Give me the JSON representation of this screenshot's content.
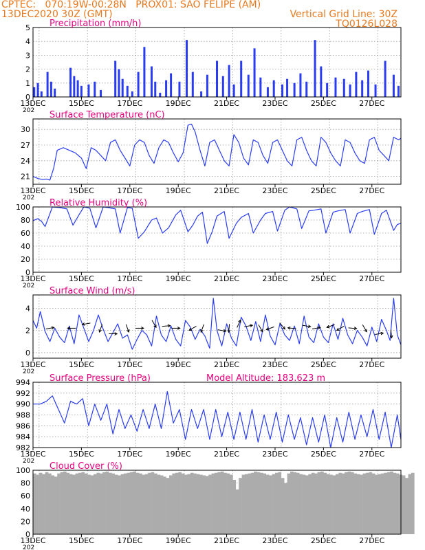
{
  "header": {
    "line1_left": "CPTEC:   070:19W-00:28N   PROX01: SAO FELIPE (AM)",
    "line2_left": "13DEC2020 30Z (GMT)",
    "line2_right": "Vertical Grid Line: 30Z",
    "line3_right": "TQ0126L028",
    "model_altitude": "Model Altitude: 183.623 m"
  },
  "colors": {
    "header": "#e6781e",
    "title": "#e6007e",
    "line": "#2a3cf0",
    "bar": "#2a3cf0",
    "cloud": "#acacac",
    "grid": "#9a9a9a"
  },
  "x_tick_labels": [
    "13DEC",
    "15DEC",
    "17DEC",
    "19DEC",
    "21DEC",
    "23DEC",
    "25DEC",
    "27DEC"
  ],
  "x_year_fragment": "202",
  "chart_data": [
    {
      "type": "bar",
      "title": "Precipitation (mm/h)",
      "ylim": [
        0,
        5
      ],
      "yticks": [
        0,
        1,
        2,
        3,
        4,
        5
      ],
      "x_range_days": [
        13,
        28.2
      ],
      "x": [
        13.05,
        13.2,
        13.35,
        13.6,
        13.75,
        13.9,
        14.55,
        14.7,
        14.85,
        15.0,
        15.3,
        15.55,
        15.8,
        16.4,
        16.55,
        16.7,
        16.9,
        17.1,
        17.35,
        17.6,
        17.9,
        18.05,
        18.25,
        18.5,
        18.7,
        19.05,
        19.35,
        19.6,
        19.95,
        20.2,
        20.6,
        20.85,
        21.1,
        21.3,
        21.6,
        21.9,
        22.15,
        22.4,
        22.7,
        22.95,
        23.3,
        23.5,
        23.8,
        24.05,
        24.3,
        24.65,
        24.9,
        25.15,
        25.5,
        25.85,
        26.1,
        26.35,
        26.6,
        26.85,
        27.15,
        27.55,
        27.9,
        28.1
      ],
      "values": [
        0.7,
        1.0,
        0.4,
        1.8,
        1.1,
        0.6,
        2.1,
        1.5,
        1.2,
        0.8,
        0.9,
        1.1,
        0.5,
        2.6,
        2.0,
        1.3,
        0.8,
        0.4,
        1.8,
        3.6,
        2.2,
        1.1,
        0.3,
        1.2,
        1.7,
        1.1,
        4.1,
        1.8,
        0.4,
        1.6,
        2.6,
        1.5,
        2.3,
        0.9,
        2.6,
        1.6,
        3.5,
        1.4,
        0.7,
        1.2,
        0.9,
        1.3,
        1.0,
        1.7,
        1.1,
        4.1,
        2.2,
        1.0,
        1.4,
        1.3,
        0.9,
        1.8,
        1.2,
        1.9,
        0.9,
        2.6,
        1.6,
        0.8
      ]
    },
    {
      "type": "line",
      "title": "Surface Temperature (nC)",
      "ylim": [
        19.5,
        32
      ],
      "yticks": [
        21,
        24,
        27,
        30
      ],
      "x_range_days": [
        13,
        28.2
      ],
      "x": [
        13.0,
        13.2,
        13.4,
        13.55,
        13.7,
        13.85,
        14.0,
        14.25,
        14.5,
        14.75,
        15.0,
        15.2,
        15.4,
        15.6,
        15.8,
        16.0,
        16.2,
        16.4,
        16.6,
        16.8,
        17.0,
        17.2,
        17.4,
        17.6,
        17.8,
        18.0,
        18.2,
        18.4,
        18.6,
        18.8,
        19.0,
        19.2,
        19.4,
        19.55,
        19.7,
        19.9,
        20.1,
        20.3,
        20.5,
        20.7,
        20.9,
        21.1,
        21.3,
        21.5,
        21.7,
        21.9,
        22.1,
        22.3,
        22.5,
        22.7,
        22.9,
        23.1,
        23.3,
        23.5,
        23.7,
        23.9,
        24.1,
        24.3,
        24.5,
        24.7,
        24.9,
        25.1,
        25.3,
        25.5,
        25.7,
        25.9,
        26.1,
        26.3,
        26.5,
        26.7,
        26.9,
        27.1,
        27.3,
        27.5,
        27.7,
        27.9,
        28.1,
        28.2
      ],
      "values": [
        21.0,
        20.6,
        20.4,
        20.5,
        20.3,
        22.5,
        26.0,
        26.5,
        26.0,
        25.5,
        24.5,
        22.5,
        26.5,
        26.0,
        25.0,
        24.0,
        27.5,
        28.0,
        26.0,
        24.5,
        23.0,
        27.0,
        28.0,
        27.5,
        25.0,
        23.5,
        26.5,
        28.0,
        27.5,
        25.5,
        23.8,
        25.5,
        30.8,
        31.0,
        29.5,
        26.0,
        23.0,
        27.5,
        28.0,
        26.0,
        24.0,
        23.0,
        29.0,
        27.5,
        24.5,
        23.2,
        28.0,
        27.5,
        25.0,
        23.5,
        27.5,
        28.0,
        26.0,
        24.0,
        23.0,
        28.0,
        28.5,
        26.0,
        24.0,
        23.0,
        28.5,
        27.5,
        25.5,
        24.0,
        23.0,
        28.0,
        27.5,
        25.5,
        24.0,
        23.5,
        28.0,
        28.5,
        26.0,
        25.0,
        24.0,
        28.5,
        28.0,
        28.3
      ]
    },
    {
      "type": "line",
      "title": "Relative Humidity (%)",
      "ylim": [
        0,
        100
      ],
      "yticks": [
        0,
        20,
        40,
        60,
        80,
        100
      ],
      "x_range_days": [
        13,
        28.2
      ],
      "x": [
        13.0,
        13.2,
        13.35,
        13.5,
        13.8,
        14.1,
        14.4,
        14.65,
        14.9,
        15.1,
        15.35,
        15.6,
        15.9,
        16.1,
        16.4,
        16.6,
        16.9,
        17.1,
        17.35,
        17.6,
        17.9,
        18.1,
        18.35,
        18.6,
        18.9,
        19.1,
        19.4,
        19.6,
        19.8,
        20.0,
        20.2,
        20.4,
        20.6,
        20.9,
        21.1,
        21.4,
        21.6,
        21.9,
        22.1,
        22.4,
        22.6,
        22.9,
        23.1,
        23.4,
        23.6,
        23.9,
        24.1,
        24.4,
        24.6,
        24.9,
        25.1,
        25.4,
        25.6,
        25.9,
        26.1,
        26.4,
        26.6,
        26.9,
        27.1,
        27.4,
        27.6,
        27.9,
        28.05,
        28.2
      ],
      "values": [
        79,
        82,
        78,
        70,
        100,
        99,
        97,
        72,
        88,
        100,
        98,
        68,
        100,
        99,
        97,
        60,
        99,
        98,
        52,
        62,
        80,
        83,
        60,
        68,
        88,
        95,
        62,
        72,
        86,
        92,
        44,
        62,
        86,
        93,
        52,
        75,
        84,
        90,
        60,
        80,
        90,
        93,
        63,
        95,
        100,
        97,
        67,
        94,
        95,
        97,
        60,
        92,
        94,
        96,
        60,
        90,
        93,
        96,
        58,
        90,
        95,
        64,
        73,
        75
      ]
    },
    {
      "type": "line",
      "title": "Surface Wind (m/s)",
      "ylim": [
        -0.5,
        5.2
      ],
      "yticks": [
        0,
        2,
        4
      ],
      "x_range_days": [
        13,
        28.2
      ],
      "x": [
        13.0,
        13.15,
        13.3,
        13.5,
        13.7,
        13.9,
        14.1,
        14.3,
        14.5,
        14.7,
        14.9,
        15.1,
        15.3,
        15.5,
        15.7,
        15.9,
        16.1,
        16.3,
        16.5,
        16.7,
        16.9,
        17.1,
        17.3,
        17.5,
        17.7,
        17.9,
        18.1,
        18.3,
        18.5,
        18.7,
        18.9,
        19.1,
        19.3,
        19.5,
        19.7,
        19.9,
        20.1,
        20.3,
        20.45,
        20.6,
        20.8,
        21.0,
        21.2,
        21.4,
        21.6,
        21.8,
        22.0,
        22.2,
        22.4,
        22.6,
        22.8,
        23.0,
        23.2,
        23.4,
        23.6,
        23.8,
        24.0,
        24.2,
        24.4,
        24.6,
        24.8,
        25.0,
        25.2,
        25.4,
        25.6,
        25.8,
        26.0,
        26.2,
        26.4,
        26.6,
        26.8,
        27.0,
        27.2,
        27.4,
        27.6,
        27.75,
        27.9,
        28.05,
        28.2
      ],
      "values": [
        2.9,
        2.2,
        3.7,
        1.9,
        1.0,
        2.2,
        1.4,
        0.9,
        2.4,
        0.8,
        3.4,
        2.2,
        1.0,
        2.0,
        3.4,
        2.1,
        1.0,
        1.8,
        2.6,
        1.3,
        1.6,
        0.3,
        1.2,
        2.0,
        1.6,
        0.6,
        3.3,
        1.6,
        1.0,
        2.4,
        1.2,
        0.6,
        2.9,
        2.3,
        1.2,
        2.1,
        1.5,
        0.4,
        4.9,
        2.0,
        0.6,
        2.6,
        1.3,
        0.6,
        3.2,
        2.4,
        1.1,
        2.8,
        1.0,
        3.4,
        1.5,
        0.7,
        2.6,
        1.6,
        1.1,
        2.4,
        0.8,
        3.3,
        1.4,
        0.9,
        2.6,
        1.4,
        0.9,
        2.6,
        1.2,
        3.1,
        1.6,
        0.8,
        2.0,
        1.4,
        0.6,
        2.3,
        1.0,
        3.0,
        2.0,
        1.1,
        4.9,
        1.6,
        0.7
      ],
      "wind_arrows": {
        "x": [
          13.7,
          14.6,
          15.2,
          15.8,
          16.3,
          16.9,
          17.4,
          18.0,
          18.5,
          18.9,
          19.6,
          20.0,
          20.8,
          21.1,
          21.5,
          21.9,
          22.4,
          22.8,
          23.3,
          23.7,
          24.3,
          24.7,
          25.3,
          25.7,
          26.2,
          26.7,
          27.3,
          27.8
        ],
        "y": [
          2.2,
          2.2,
          2.6,
          2.2,
          1.7,
          2.2,
          2.2,
          2.6,
          2.4,
          2.2,
          2.2,
          2.2,
          2.0,
          2.2,
          2.6,
          2.4,
          2.2,
          2.2,
          2.4,
          2.2,
          2.4,
          2.2,
          2.4,
          2.2,
          2.2,
          2.2,
          1.7,
          1.7
        ],
        "dir_deg": [
          80,
          270,
          260,
          200,
          90,
          160,
          90,
          150,
          85,
          90,
          240,
          200,
          100,
          185,
          25,
          80,
          150,
          250,
          140,
          275,
          100,
          80,
          250,
          240,
          95,
          150,
          80,
          175
        ]
      }
    },
    {
      "type": "line",
      "title": "Surface Pressure (hPa)",
      "ylim": [
        982,
        994
      ],
      "yticks": [
        982,
        984,
        986,
        988,
        990,
        992,
        994
      ],
      "x_range_days": [
        13,
        28.2
      ],
      "x": [
        13.0,
        13.3,
        13.55,
        13.8,
        14.05,
        14.3,
        14.55,
        14.8,
        15.05,
        15.3,
        15.55,
        15.8,
        16.05,
        16.3,
        16.55,
        16.8,
        17.05,
        17.3,
        17.55,
        17.8,
        18.05,
        18.3,
        18.55,
        18.8,
        19.05,
        19.3,
        19.55,
        19.8,
        20.05,
        20.3,
        20.55,
        20.8,
        21.05,
        21.3,
        21.55,
        21.8,
        22.05,
        22.3,
        22.55,
        22.8,
        23.05,
        23.3,
        23.55,
        23.8,
        24.05,
        24.3,
        24.55,
        24.8,
        25.05,
        25.3,
        25.55,
        25.8,
        26.05,
        26.3,
        26.55,
        26.8,
        27.05,
        27.3,
        27.55,
        27.8,
        28.05,
        28.2
      ],
      "values": [
        990,
        990,
        990.5,
        991.5,
        989,
        986.5,
        990.5,
        990,
        991,
        986,
        990,
        987,
        990,
        984.5,
        989,
        985.5,
        988,
        985,
        989,
        985.5,
        990,
        985.5,
        992.3,
        986.5,
        989,
        983.5,
        989,
        985.5,
        989,
        983.5,
        989,
        984,
        988.5,
        983.5,
        988.5,
        983.5,
        989,
        983,
        988,
        983.5,
        988.5,
        983,
        988,
        983.5,
        987.5,
        982.5,
        987.5,
        983,
        988,
        982,
        987.5,
        983,
        988.5,
        983.5,
        988,
        984,
        989,
        983.5,
        988.5,
        982,
        988,
        983.5
      ]
    },
    {
      "type": "bar",
      "title": "Cloud Cover (%)",
      "ylim": [
        0,
        100
      ],
      "yticks": [
        0,
        20,
        40,
        60,
        80,
        100
      ],
      "x_range_days": [
        13,
        28.2
      ],
      "x_start": 13,
      "x_step": 0.125,
      "values": [
        95,
        93,
        96,
        94,
        97,
        95,
        92,
        90,
        95,
        97,
        98,
        96,
        94,
        93,
        95,
        96,
        97,
        95,
        93,
        92,
        94,
        96,
        95,
        97,
        98,
        96,
        95,
        93,
        92,
        94,
        95,
        96,
        97,
        98,
        96,
        95,
        93,
        94,
        96,
        97,
        95,
        93,
        92,
        90,
        88,
        92,
        95,
        96,
        97,
        95,
        93,
        94,
        96,
        95,
        94,
        93,
        92,
        91,
        93,
        95,
        96,
        97,
        98,
        96,
        95,
        93,
        85,
        70,
        88,
        93,
        94,
        95,
        96,
        98,
        97,
        96,
        95,
        93,
        92,
        94,
        96,
        97,
        88,
        80,
        95,
        98,
        97,
        96,
        94,
        93,
        92,
        94,
        96,
        95,
        97,
        98,
        96,
        94,
        93,
        92,
        94,
        96,
        95,
        97,
        98,
        97,
        95,
        94,
        93,
        95,
        96,
        97,
        95,
        93,
        94,
        95,
        96,
        97,
        98,
        96,
        95,
        93,
        92,
        88,
        94,
        96
      ]
    }
  ]
}
